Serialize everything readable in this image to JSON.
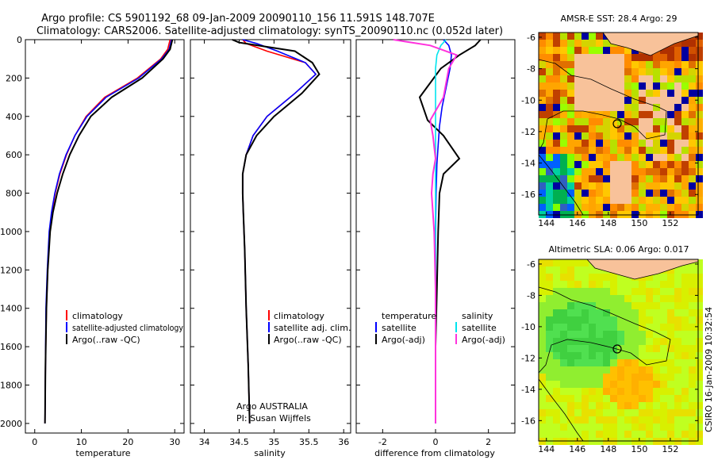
{
  "title": {
    "line1": "Argo profile: CS 5901192_68 09-Jan-2009 20090110_156 11.591S 148.707E",
    "line2": "Climatology: CARS2006. Satellite-adjusted climatology: synTS_20090110.nc (0.052d later)"
  },
  "panels": {
    "temperature": {
      "xlabel": "temperature",
      "xticks": [
        "0",
        "10",
        "20",
        "30"
      ],
      "legend": [
        "climatology",
        "satellite-adjusted climatology",
        "Argo(..raw -QC)"
      ]
    },
    "salinity": {
      "xlabel": "salinity",
      "xticks": [
        "34",
        "34.5",
        "35",
        "35.5",
        "36"
      ],
      "legend": [
        "climatology",
        "satellite adj. clim.",
        "Argo(..raw -QC)"
      ],
      "note1": "Argo AUSTRALIA",
      "note2": "PI: Susan Wijffels"
    },
    "difference": {
      "xlabel": "difference from climatology",
      "xticks": [
        "-2",
        "0",
        "2"
      ],
      "legend_left_head": "temperature",
      "legend_left": [
        "satellite",
        "Argo(-adj)"
      ],
      "legend_right_head": "salinity",
      "legend_right": [
        "satellite",
        "Argo(-adj)"
      ]
    },
    "yticks": [
      "0",
      "200",
      "400",
      "600",
      "800",
      "1000",
      "1200",
      "1400",
      "1600",
      "1800",
      "2000"
    ]
  },
  "maps": {
    "sst_title": "AMSR-E SST: 28.4 Argo: 29",
    "sla_title": "Altimetric SLA: 0.06 Argo: 0.017",
    "xticks": [
      "144",
      "146",
      "148",
      "150",
      "152"
    ],
    "yticks": [
      "-6",
      "-8",
      "-10",
      "-12",
      "-14",
      "-16"
    ]
  },
  "side_label": "CSIRO 16-Jan-2009 10:32:54",
  "colors": {
    "clim": "#ff0000",
    "sat": "#0000ff",
    "argo": "#000000",
    "sat_s": "#00e5ee",
    "argo_s": "#ff33dd",
    "land": "#f8c29a"
  },
  "chart_data": [
    {
      "type": "line",
      "xlabel": "temperature",
      "ylabel": "",
      "xlim": [
        -2,
        32
      ],
      "ylim": [
        2050,
        0
      ],
      "series": [
        {
          "name": "climatology",
          "x": [
            29,
            28.5,
            27,
            22,
            15,
            11,
            8.6,
            6.8,
            5.4,
            4.4,
            3.7,
            3.2,
            2.8,
            2.5,
            2.3,
            2.2
          ],
          "y": [
            0,
            50,
            100,
            200,
            300,
            400,
            500,
            600,
            700,
            800,
            900,
            1000,
            1200,
            1400,
            1700,
            2000
          ]
        },
        {
          "name": "satellite-adjusted climatology",
          "x": [
            29.3,
            28.8,
            27.2,
            22.3,
            15.3,
            11.2,
            8.6,
            6.7,
            5.3,
            4.3,
            3.6,
            3.1,
            2.7,
            2.4,
            2.3,
            2.2
          ],
          "y": [
            0,
            50,
            100,
            200,
            300,
            400,
            500,
            600,
            700,
            800,
            900,
            1000,
            1200,
            1400,
            1700,
            2000
          ]
        },
        {
          "name": "Argo(..raw -QC)",
          "x": [
            29.5,
            29,
            27.5,
            23,
            16.5,
            12,
            9.5,
            7.5,
            6,
            4.8,
            3.9,
            3.3,
            2.8,
            2.5,
            2.3,
            2.2
          ],
          "y": [
            0,
            50,
            100,
            200,
            300,
            400,
            500,
            600,
            700,
            800,
            900,
            1000,
            1200,
            1400,
            1700,
            2000
          ]
        }
      ]
    },
    {
      "type": "line",
      "xlabel": "salinity",
      "ylabel": "",
      "xlim": [
        33.8,
        36.1
      ],
      "ylim": [
        2050,
        0
      ],
      "series": [
        {
          "name": "climatology",
          "x": [
            34.55,
            34.6,
            34.9,
            35.45,
            35.6,
            35.3,
            34.9,
            34.7,
            34.6,
            34.55,
            34.55,
            34.56,
            34.58,
            34.6,
            34.63,
            34.65
          ],
          "y": [
            0,
            20,
            60,
            120,
            180,
            280,
            400,
            500,
            600,
            700,
            800,
            900,
            1100,
            1400,
            1700,
            2000
          ]
        },
        {
          "name": "satellite adj. clim.",
          "x": [
            34.55,
            34.75,
            35.05,
            35.45,
            35.6,
            35.3,
            34.9,
            34.7,
            34.6,
            34.55,
            34.55,
            34.56,
            34.58,
            34.6,
            34.63,
            34.65
          ],
          "y": [
            0,
            20,
            60,
            120,
            180,
            280,
            400,
            500,
            600,
            700,
            800,
            900,
            1100,
            1400,
            1700,
            2000
          ]
        },
        {
          "name": "Argo(..raw -QC)",
          "x": [
            34.4,
            34.5,
            35.3,
            35.55,
            35.65,
            35.4,
            35.0,
            34.75,
            34.6,
            34.55,
            34.55,
            34.56,
            34.58,
            34.6,
            34.63,
            34.65
          ],
          "y": [
            0,
            15,
            60,
            120,
            180,
            280,
            400,
            500,
            600,
            700,
            800,
            900,
            1100,
            1400,
            1700,
            2000
          ]
        }
      ]
    },
    {
      "type": "line",
      "xlabel": "difference from climatology",
      "ylabel": "",
      "xlim": [
        -3,
        3
      ],
      "ylim": [
        2050,
        0
      ],
      "series": [
        {
          "name": "temperature satellite",
          "x": [
            0.3,
            0.5,
            0.6,
            0.55,
            0.4,
            0.25,
            0.15,
            0.1,
            0.05,
            0.02,
            0,
            0,
            0,
            0
          ],
          "y": [
            0,
            30,
            80,
            150,
            250,
            350,
            450,
            550,
            650,
            800,
            1000,
            1300,
            1600,
            2000
          ]
        },
        {
          "name": "temperature Argo(-adj)",
          "x": [
            1.7,
            1.5,
            0.9,
            0.2,
            -0.6,
            -0.3,
            0.3,
            0.9,
            0.3,
            0.15,
            0.1,
            0.05,
            0,
            0
          ],
          "y": [
            0,
            30,
            80,
            150,
            300,
            420,
            500,
            620,
            700,
            800,
            1000,
            1300,
            1600,
            2000
          ]
        },
        {
          "name": "salinity satellite",
          "x": [
            0.4,
            0.2,
            0.05,
            0,
            0,
            0,
            0,
            0,
            0,
            0,
            0,
            0,
            0,
            0
          ],
          "y": [
            0,
            30,
            80,
            150,
            250,
            350,
            450,
            550,
            650,
            800,
            1000,
            1300,
            1600,
            2000
          ]
        },
        {
          "name": "salinity Argo(-adj)",
          "x": [
            -1.6,
            -0.2,
            0.8,
            0.5,
            0.3,
            -0.2,
            -0.1,
            0,
            -0.1,
            -0.15,
            -0.05,
            0,
            0,
            0
          ],
          "y": [
            0,
            30,
            80,
            150,
            300,
            420,
            500,
            620,
            700,
            800,
            1000,
            1300,
            1600,
            2000
          ]
        }
      ]
    },
    {
      "type": "heatmap",
      "title": "AMSR-E SST: 28.4 Argo: 29",
      "xlim": [
        143.5,
        153.8
      ],
      "ylim": [
        -17.3,
        -5.7
      ],
      "marker": {
        "lon": 148.7,
        "lat": -11.6
      }
    },
    {
      "type": "heatmap",
      "title": "Altimetric SLA: 0.06 Argo: 0.017",
      "xlim": [
        143.5,
        153.8
      ],
      "ylim": [
        -17.3,
        -5.7
      ],
      "marker": {
        "lon": 148.7,
        "lat": -11.6
      }
    }
  ]
}
